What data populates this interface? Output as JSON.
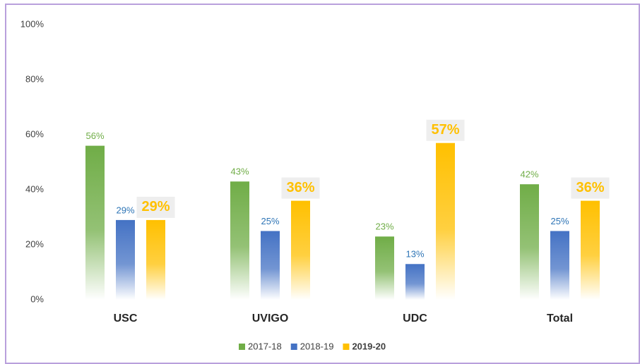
{
  "chart_data": {
    "type": "bar",
    "categories": [
      "USC",
      "UVIGO",
      "UDC",
      "Total"
    ],
    "series": [
      {
        "name": "2017-18",
        "color": "#70ad47",
        "values": [
          56,
          43,
          23,
          42
        ],
        "value_labels": [
          "56%",
          "43%",
          "23%",
          "42%"
        ]
      },
      {
        "name": "2018-19",
        "color": "#4472c4",
        "values": [
          29,
          25,
          13,
          25
        ],
        "value_labels": [
          "29%",
          "25%",
          "13%",
          "25%"
        ]
      },
      {
        "name": "2019-20",
        "color": "#ffc000",
        "values": [
          29,
          36,
          57,
          36
        ],
        "value_labels": [
          "29%",
          "36%",
          "57%",
          "36%"
        ]
      }
    ],
    "ylim": [
      0,
      100
    ],
    "yticks": [
      {
        "value": 0,
        "label": "0%"
      },
      {
        "value": 20,
        "label": "20%"
      },
      {
        "value": 40,
        "label": "40%"
      },
      {
        "value": 60,
        "label": "60%"
      },
      {
        "value": 80,
        "label": "80%"
      },
      {
        "value": 100,
        "label": "100%"
      }
    ],
    "grid": false,
    "legend": "bottom"
  }
}
